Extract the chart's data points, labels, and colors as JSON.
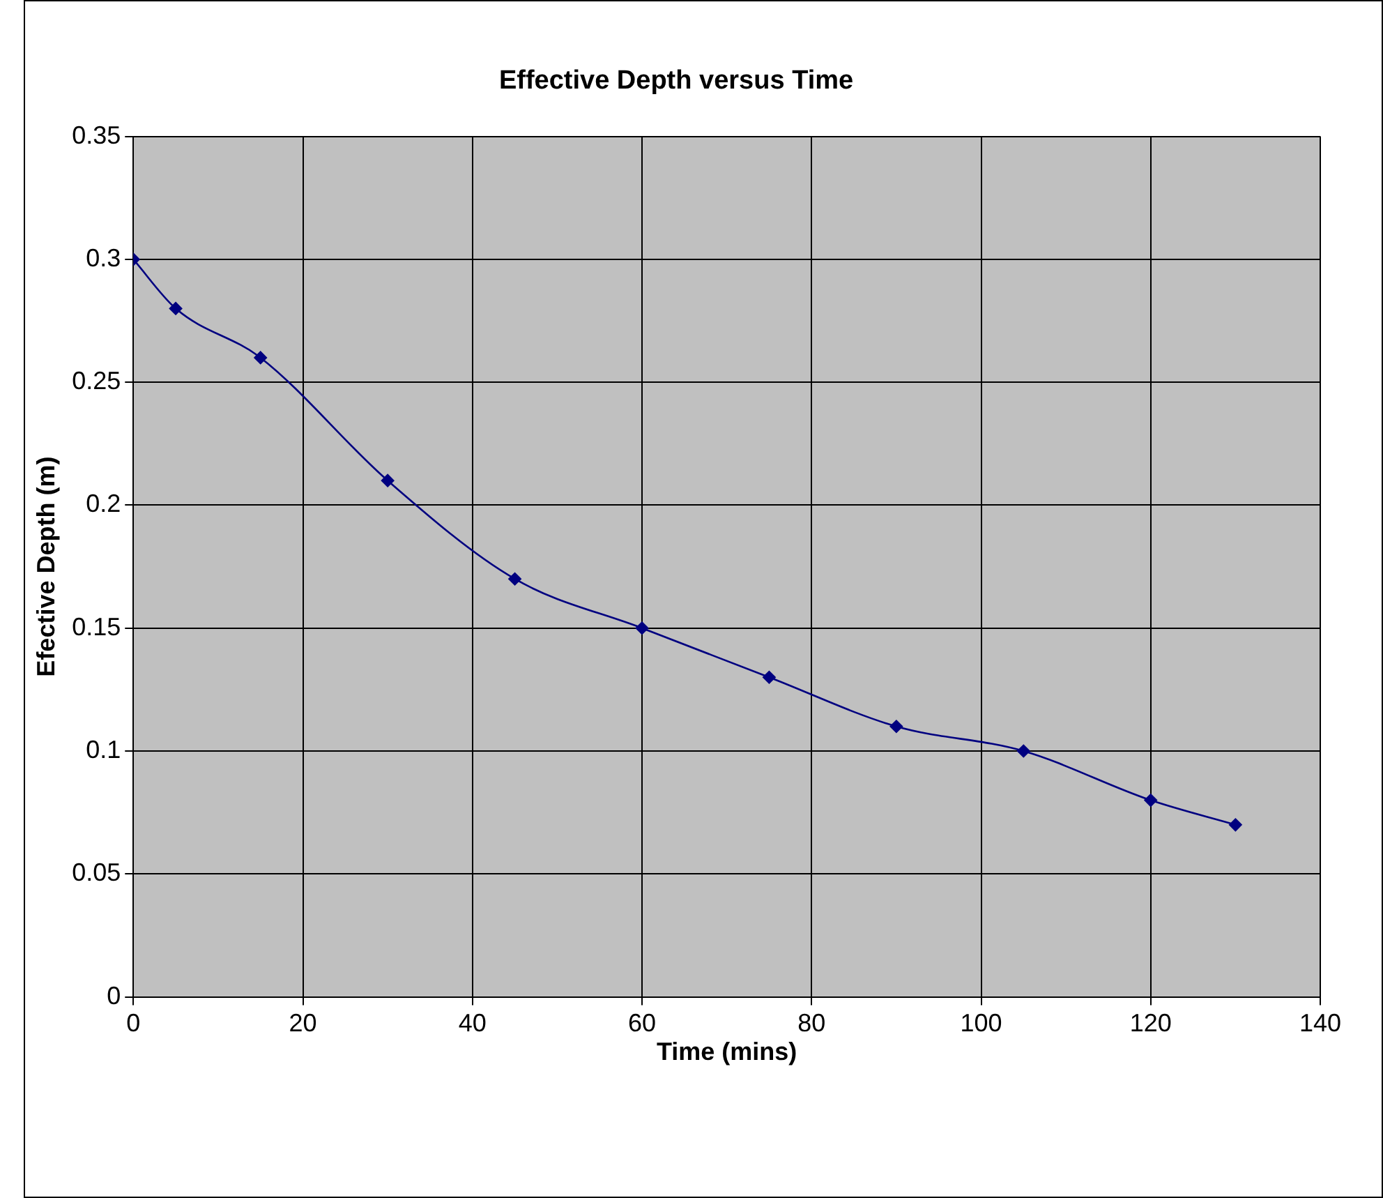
{
  "chart_data": {
    "type": "line",
    "title": "Effective Depth versus Time",
    "xlabel": "Time (mins)",
    "ylabel": "Efective Depth (m)",
    "x": [
      0,
      5,
      15,
      30,
      45,
      60,
      75,
      90,
      105,
      120,
      130
    ],
    "series": [
      {
        "color": "#000080",
        "values": [
          0.3,
          0.28,
          0.26,
          0.21,
          0.17,
          0.15,
          0.13,
          0.11,
          0.1,
          0.08,
          0.07
        ]
      }
    ],
    "xlim": [
      0,
      140
    ],
    "xticks": [
      0,
      20,
      40,
      60,
      80,
      100,
      120,
      140
    ],
    "ylim": [
      0,
      0.35
    ],
    "yticks": [
      0,
      0.05,
      0.1,
      0.15,
      0.2,
      0.25,
      0.3,
      0.35
    ],
    "grid": true,
    "legend": false,
    "marker": "diamond",
    "line_style": "solid"
  }
}
